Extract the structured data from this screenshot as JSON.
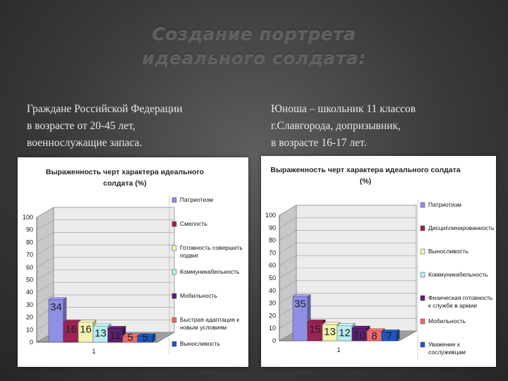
{
  "title": {
    "line1": "Создание портрета",
    "line2": "идеального солдата:"
  },
  "left_caption": [
    "Граждане Российской Федерации",
    "в возрасте от 20-45 лет,",
    "военнослужащие запаса."
  ],
  "right_caption": [
    "Юноша – школьник 11 классов",
    "г.Славгорода, допризывник,",
    "в возрасте 16-17 лет."
  ],
  "chart_data": [
    {
      "type": "bar",
      "title_lines": [
        "Выраженность черт характера идеального",
        "солдата (%)"
      ],
      "categories": [
        "1"
      ],
      "ylim": [
        0,
        100
      ],
      "yticks": [
        0,
        10,
        20,
        30,
        40,
        50,
        60,
        70,
        80,
        90,
        100
      ],
      "grid": true,
      "legend_position": "right",
      "series": [
        {
          "name": "Патриотизм",
          "values": [
            34
          ],
          "color": "#8f8fe6"
        },
        {
          "name": "Смелость",
          "values": [
            16
          ],
          "color": "#9a2455"
        },
        {
          "name": "Готовность совершить подвиг",
          "values": [
            16
          ],
          "color": "#f3f3b2"
        },
        {
          "name": "Коммуникабельность",
          "values": [
            13
          ],
          "color": "#b7ecf3"
        },
        {
          "name": "Мобильность",
          "values": [
            11
          ],
          "color": "#5b1f70"
        },
        {
          "name": "Быстрая адаптация к новым условиям",
          "values": [
            5
          ],
          "color": "#ee6b6b"
        },
        {
          "name": "Выносливость",
          "values": [
            5
          ],
          "color": "#1c57c4"
        }
      ]
    },
    {
      "type": "bar",
      "title_lines": [
        "Выраженность черт характера идеального солдата",
        "(%)"
      ],
      "categories": [
        "1"
      ],
      "ylim": [
        0,
        100
      ],
      "yticks": [
        0,
        10,
        20,
        30,
        40,
        50,
        60,
        70,
        80,
        90,
        100
      ],
      "grid": true,
      "legend_position": "right",
      "series": [
        {
          "name": "Патриотизм",
          "values": [
            35
          ],
          "color": "#8f8fe6"
        },
        {
          "name": "Дисциплинированность",
          "values": [
            15
          ],
          "color": "#9a2455"
        },
        {
          "name": "Выносливость",
          "values": [
            13
          ],
          "color": "#f3f3b2"
        },
        {
          "name": "Коммуникабельность",
          "values": [
            12
          ],
          "color": "#b7ecf3"
        },
        {
          "name": "Физическая готовность к службе в армии",
          "values": [
            10
          ],
          "color": "#5b1f70"
        },
        {
          "name": "Мобильность",
          "values": [
            8
          ],
          "color": "#ee6b6b"
        },
        {
          "name": "Уважение к сослуживцам",
          "values": [
            7
          ],
          "color": "#1c57c4"
        }
      ]
    }
  ]
}
